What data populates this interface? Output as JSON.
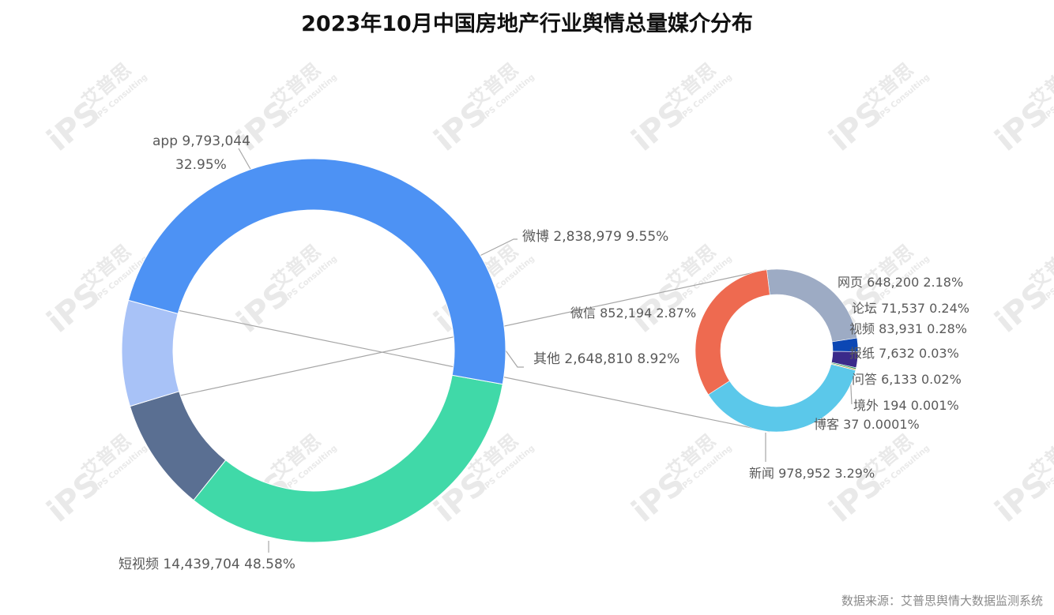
{
  "title": "2023年10月中国房地产行业舆情总量媒介分布",
  "source": "数据来源：艾普思舆情大数据监测系统",
  "watermark": {
    "brand_cn": "艾普思",
    "brand_en": "IPS Consulting",
    "logo": "iPS"
  },
  "colors": {
    "app": "#40d9a8",
    "weibo": "#5a6f92",
    "other": "#a8c2f7",
    "short_video": "#4d92f4",
    "web": "#9dabc4",
    "forum": "#0c47b4",
    "video": "#3a2a8a",
    "newspaper": "#1d8f5e",
    "qa": "#c9962e",
    "overseas": "#333333",
    "blog": "#aaaaaa",
    "news": "#5bc8ea",
    "wechat": "#ee6a50"
  },
  "chart_data": [
    {
      "type": "pie",
      "style": "donut",
      "slices": [
        {
          "key": "app",
          "name": "app",
          "value": 9793044,
          "value_label": "9,793,044",
          "percent_label": "32.95%"
        },
        {
          "key": "weibo",
          "name": "微博",
          "value": 2838979,
          "value_label": "2,838,979",
          "percent_label": "9.55%"
        },
        {
          "key": "other",
          "name": "其他",
          "value": 2648810,
          "value_label": "2,648,810",
          "percent_label": "8.92%"
        },
        {
          "key": "short_video",
          "name": "短视频",
          "value": 14439704,
          "value_label": "14,439,704",
          "percent_label": "48.58%"
        }
      ]
    },
    {
      "type": "pie",
      "style": "donut",
      "breakdown_of": "其他",
      "slices": [
        {
          "key": "web",
          "name": "网页",
          "value": 648200,
          "value_label": "648,200",
          "percent_label": "2.18%"
        },
        {
          "key": "forum",
          "name": "论坛",
          "value": 71537,
          "value_label": "71,537",
          "percent_label": "0.24%"
        },
        {
          "key": "video",
          "name": "视频",
          "value": 83931,
          "value_label": "83,931",
          "percent_label": "0.28%"
        },
        {
          "key": "newspaper",
          "name": "报纸",
          "value": 7632,
          "value_label": "7,632",
          "percent_label": "0.03%"
        },
        {
          "key": "qa",
          "name": "问答",
          "value": 6133,
          "value_label": "6,133",
          "percent_label": "0.02%"
        },
        {
          "key": "overseas",
          "name": "境外",
          "value": 194,
          "value_label": "194",
          "percent_label": "0.001%"
        },
        {
          "key": "blog",
          "name": "博客",
          "value": 37,
          "value_label": "37",
          "percent_label": "0.0001%"
        },
        {
          "key": "news",
          "name": "新闻",
          "value": 978952,
          "value_label": "978,952",
          "percent_label": "3.29%"
        },
        {
          "key": "wechat",
          "name": "微信",
          "value": 852194,
          "value_label": "852,194",
          "percent_label": "2.87%"
        }
      ]
    }
  ]
}
